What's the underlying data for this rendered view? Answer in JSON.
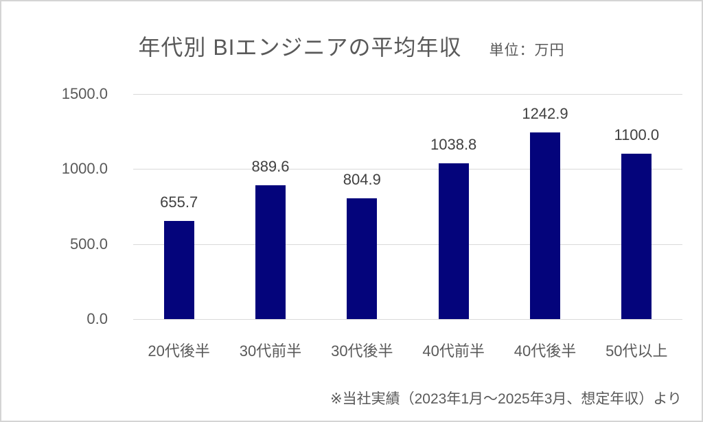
{
  "chart": {
    "title": "年代別 BIエンジニアの平均年収",
    "unit_label": "単位：万円",
    "footnote": "※当社実績（2023年1月～2025年3月、想定年収）より"
  },
  "colors": {
    "bar": "#04047b",
    "gridline": "#d9d9d9",
    "axis_text": "#595959",
    "data_label_text": "#404040",
    "title_text": "#595959",
    "frame_border": "#d4d4d4"
  },
  "chart_data": {
    "type": "bar",
    "title": "年代別 BIエンジニアの平均年収",
    "subtitle": "単位：万円",
    "ylabel": "",
    "xlabel": "",
    "unit": "万円",
    "categories": [
      "20代後半",
      "30代前半",
      "30代後半",
      "40代前半",
      "40代後半",
      "50代以上"
    ],
    "values": [
      655.7,
      889.6,
      804.9,
      1038.8,
      1242.9,
      1100.0
    ],
    "data_labels": [
      "655.7",
      "889.6",
      "804.9",
      "1038.8",
      "1242.9",
      "1100.0"
    ],
    "ylim": [
      0,
      1500
    ],
    "yticks": [
      {
        "value": 0,
        "label": "0.0"
      },
      {
        "value": 500,
        "label": "500.0"
      },
      {
        "value": 1000,
        "label": "1000.0"
      },
      {
        "value": 1500,
        "label": "1500.0"
      }
    ],
    "grid": true,
    "legend": false,
    "annotations": [
      "※当社実績（2023年1月～2025年3月、想定年収）より"
    ]
  }
}
